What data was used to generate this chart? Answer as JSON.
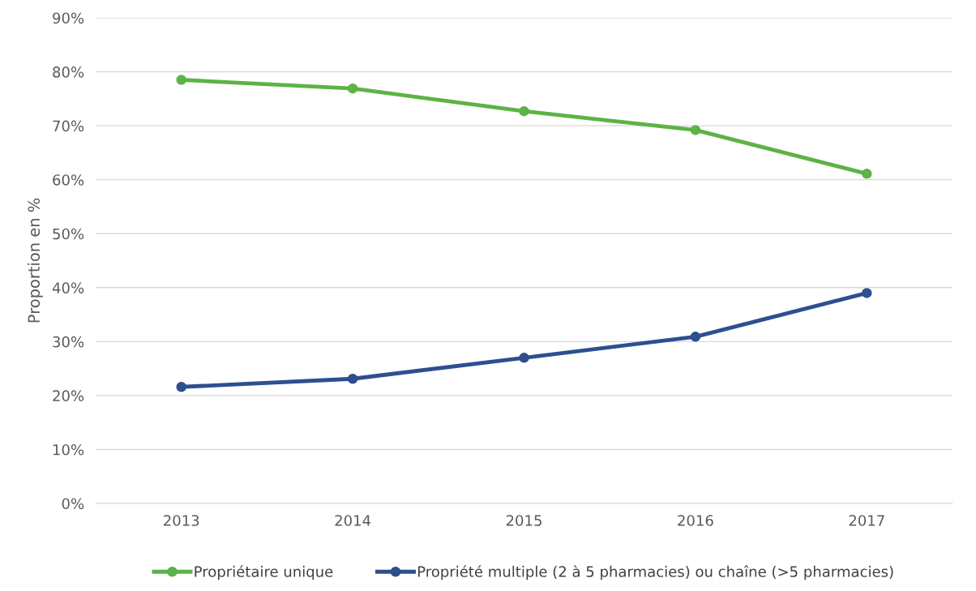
{
  "chart_data": {
    "type": "line",
    "ylabel": "Proportion en %",
    "categories": [
      "2013",
      "2014",
      "2015",
      "2016",
      "2017"
    ],
    "series": [
      {
        "name": "Propriétaire unique",
        "color": "#5cb346",
        "values": [
          78.5,
          76.9,
          72.7,
          69.2,
          61.1
        ]
      },
      {
        "name": "Propriété multiple (2 à 5 pharmacies) ou chaîne (>5 pharmacies)",
        "color": "#2e4f8f",
        "values": [
          21.6,
          23.1,
          27.0,
          30.9,
          39.0
        ]
      }
    ],
    "ylim": [
      0,
      90
    ],
    "yticks": [
      {
        "value": 0,
        "label": "0%"
      },
      {
        "value": 10,
        "label": "10%"
      },
      {
        "value": 20,
        "label": "20%"
      },
      {
        "value": 30,
        "label": "30%"
      },
      {
        "value": 40,
        "label": "40%"
      },
      {
        "value": 50,
        "label": "50%"
      },
      {
        "value": 60,
        "label": "60%"
      },
      {
        "value": 70,
        "label": "70%"
      },
      {
        "value": 80,
        "label": "80%"
      },
      {
        "value": 90,
        "label": "90%"
      }
    ],
    "grid": "y",
    "legend": "bottom",
    "marker": "circle",
    "line_style": "solid"
  }
}
